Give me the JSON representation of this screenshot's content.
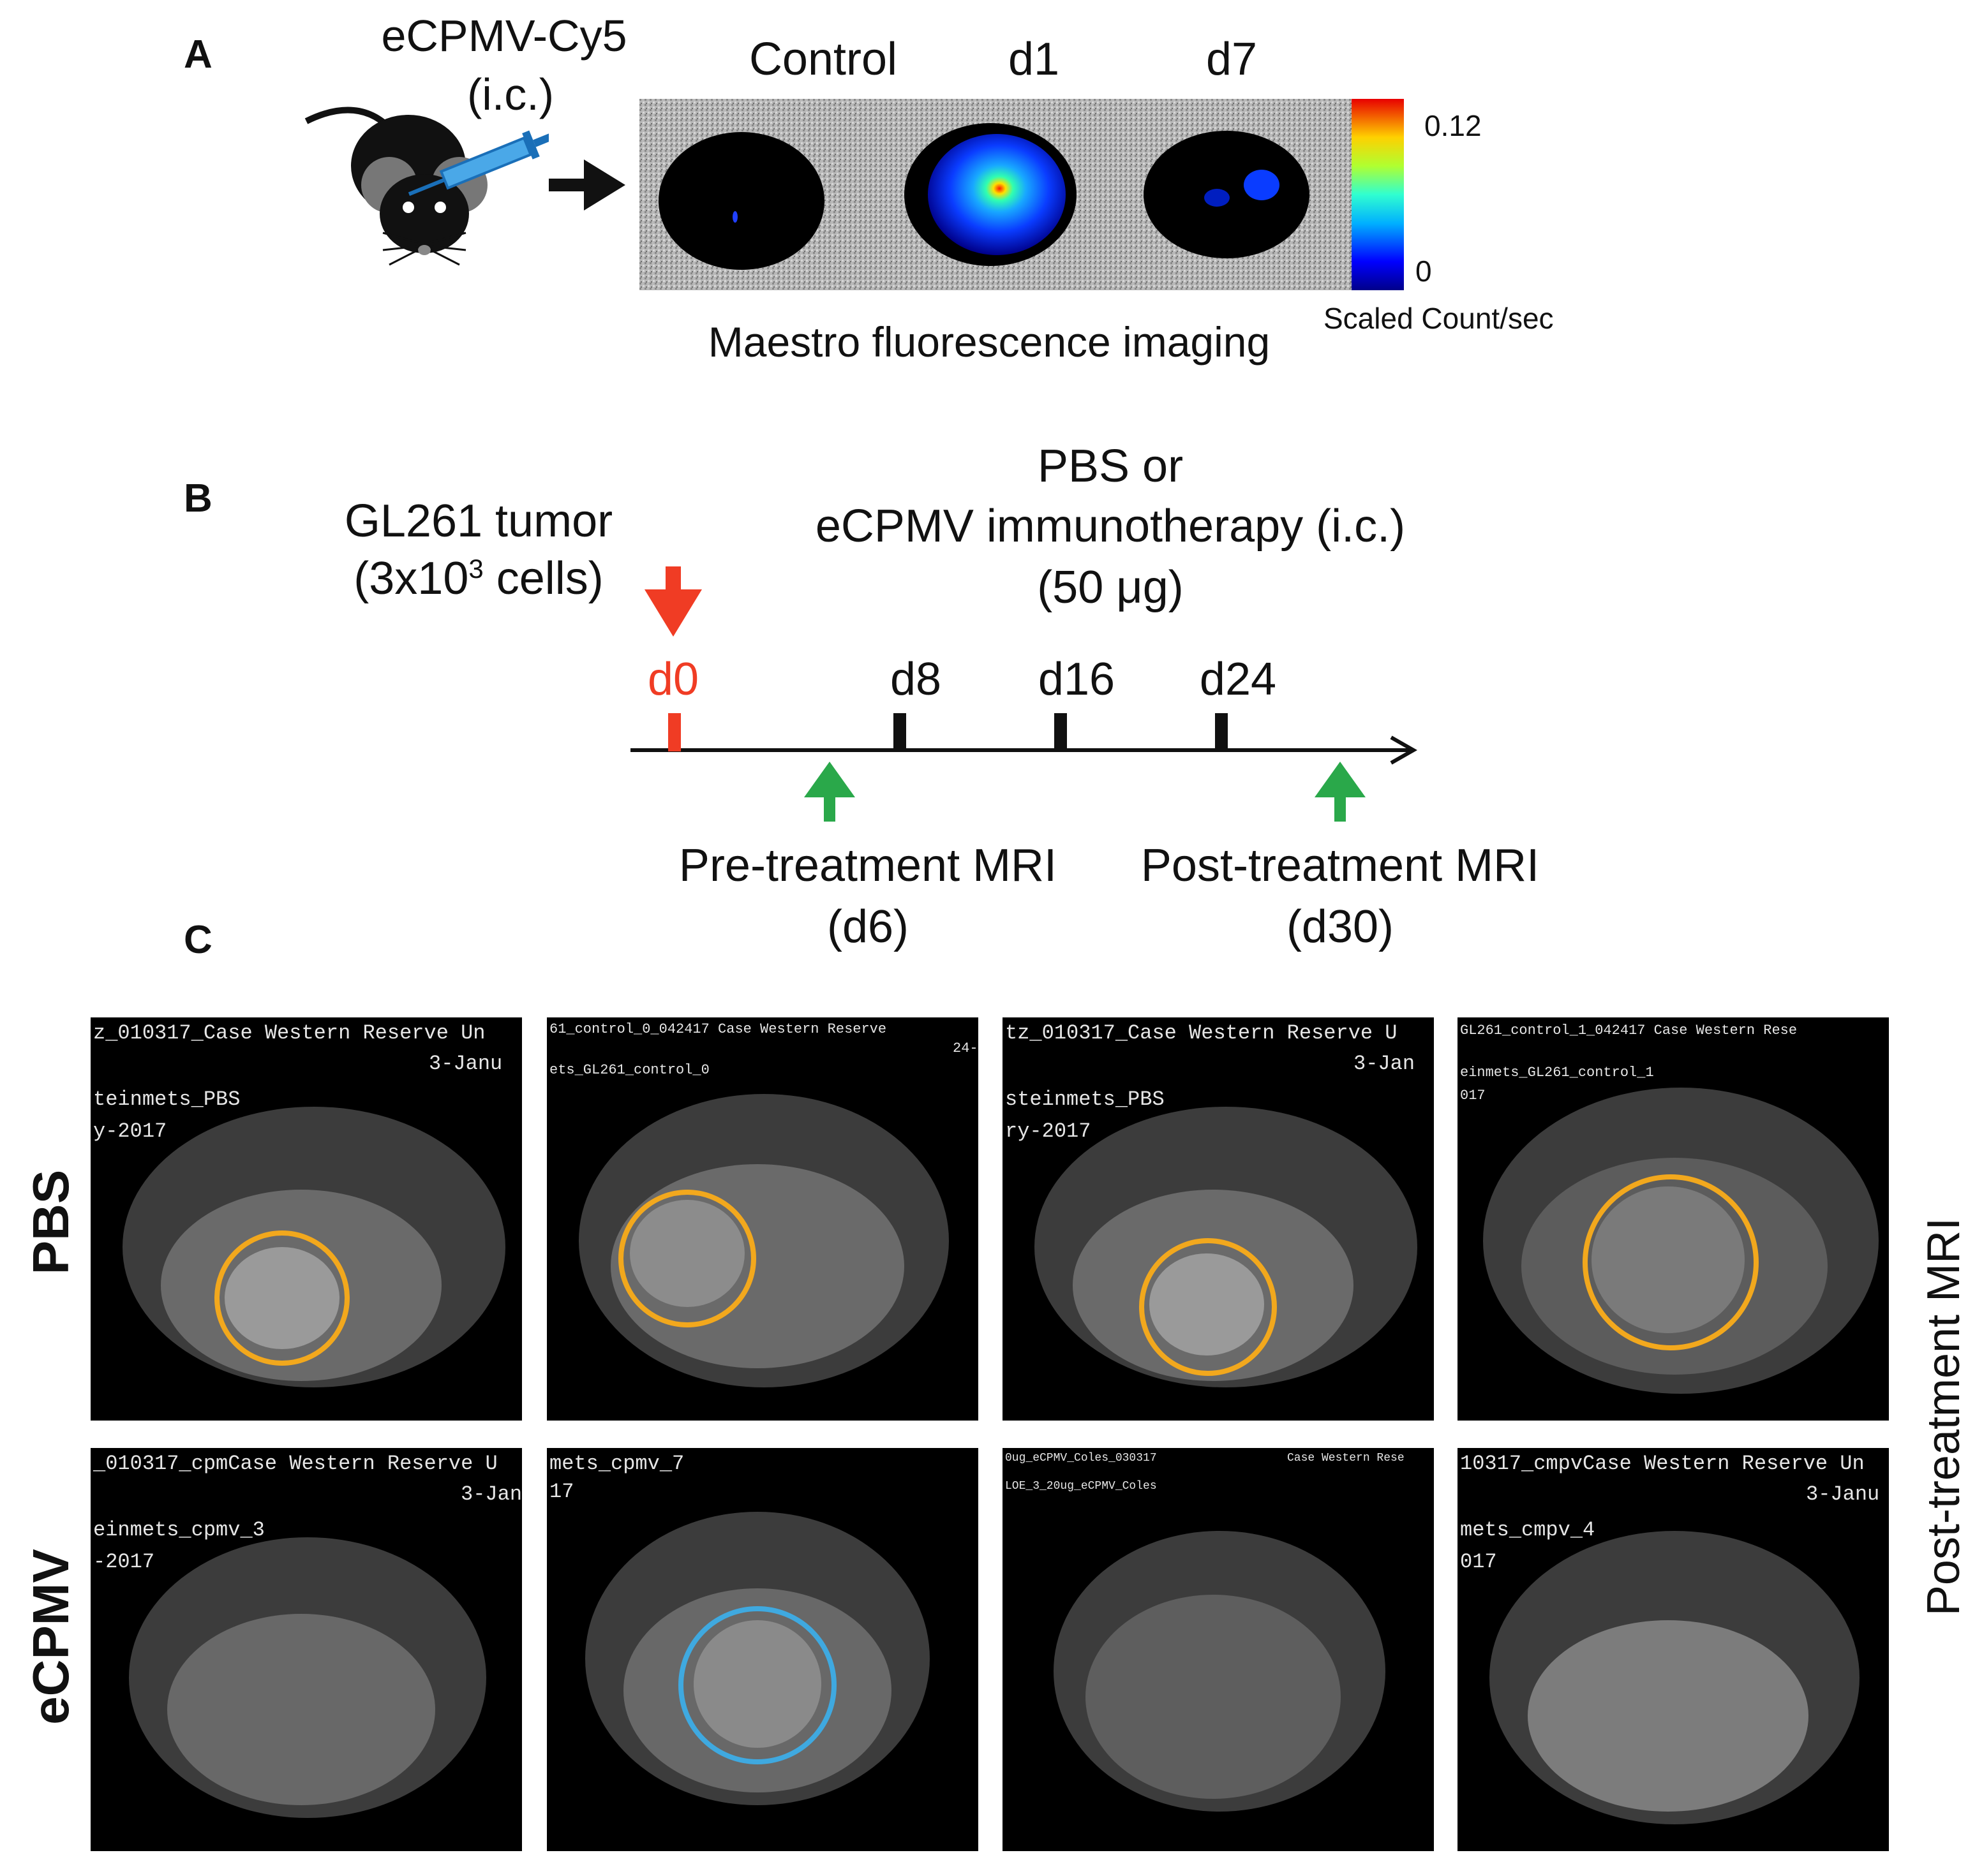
{
  "panels": {
    "a": "A",
    "b": "B",
    "c": "C"
  },
  "panel_a": {
    "agent": "eCPMV-Cy5",
    "route": "(i.c.)",
    "columns": [
      "Control",
      "d1",
      "d7"
    ],
    "imaging_label": "Maestro fluorescence imaging",
    "colorbar": {
      "max": "0.12",
      "min": "0",
      "unit": "Scaled Count/sec"
    }
  },
  "panel_b": {
    "tumor_line1": "GL261 tumor",
    "tumor_line2_prefix": "(3x10",
    "tumor_line2_sup": "3",
    "tumor_line2_suffix": " cells)",
    "treatment_line1": "PBS or",
    "treatment_line2": "eCPMV immunotherapy (i.c.)",
    "treatment_line3": "(50 μg)",
    "days": [
      "d0",
      "d8",
      "d16",
      "d24"
    ],
    "pre_mri": "Pre-treatment MRI",
    "pre_mri_day": "(d6)",
    "post_mri": "Post-treatment MRI",
    "post_mri_day": "(d30)",
    "colors": {
      "injection": "#f03c24",
      "mri": "#2aa84a",
      "tick": "#111111"
    }
  },
  "panel_c": {
    "row_labels": [
      "PBS",
      "eCPMV"
    ],
    "side_label": "Post-treatment MRI",
    "colors": {
      "pbs_circle": "#f2a81d",
      "ecpmv_circle": "#3fa9e0"
    },
    "images": [
      {
        "lines": [
          "z_010317_Case Western Reserve Un",
          "3-Janu",
          "teinmets_PBS",
          "y-2017"
        ]
      },
      {
        "lines": [
          "61_control_0_042417 Case Western Reserve",
          "24-",
          "ets_GL261_control_0"
        ]
      },
      {
        "lines": [
          "tz_010317_Case Western Reserve U",
          "3-Jan",
          "steinmets_PBS",
          "ry-2017"
        ]
      },
      {
        "lines": [
          "GL261_control_1_042417 Case Western Rese",
          "einmets_GL261_control_1",
          "017"
        ]
      },
      {
        "lines": [
          "_010317_cpmCase Western Reserve U",
          "3-Jan",
          "einmets_cpmv_3",
          "-2017"
        ]
      },
      {
        "lines": [
          "mets_cpmv_7",
          "17"
        ]
      },
      {
        "lines": [
          "0ug_eCPMV_Coles_030317",
          "Case Western Rese",
          "LOE_3_20ug_eCPMV_Coles"
        ]
      },
      {
        "lines": [
          "10317_cmpvCase Western Reserve Un",
          "3-Janu",
          "mets_cmpv_4",
          "017"
        ]
      }
    ]
  }
}
